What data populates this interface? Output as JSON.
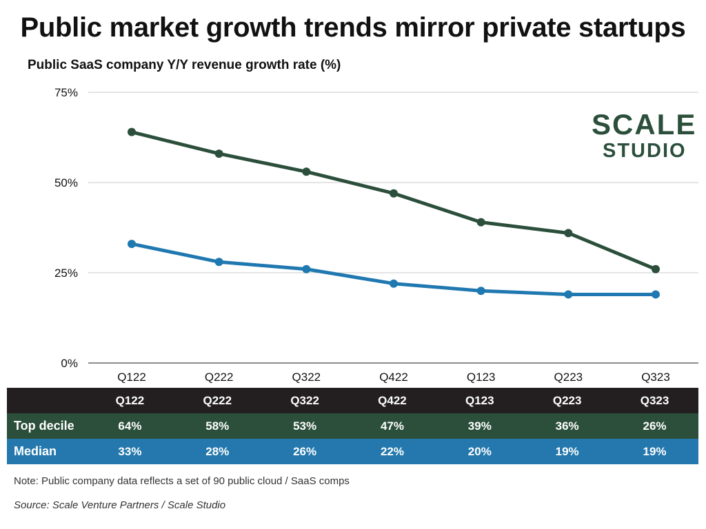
{
  "title": "Public market growth trends mirror private startups",
  "subtitle": "Public SaaS company Y/Y revenue growth rate (%)",
  "logo": {
    "line1": "SCALE",
    "line2": "STUDIO"
  },
  "chart_data": {
    "type": "line",
    "title": "Public market growth trends mirror private startups",
    "ylabel": "Public SaaS company Y/Y revenue growth rate (%)",
    "xlabel": "",
    "categories": [
      "Q122",
      "Q222",
      "Q322",
      "Q422",
      "Q123",
      "Q223",
      "Q323"
    ],
    "series": [
      {
        "name": "Top decile",
        "values": [
          64,
          58,
          53,
          47,
          39,
          36,
          26
        ],
        "color": "#2b4f3b"
      },
      {
        "name": "Median",
        "values": [
          33,
          28,
          26,
          22,
          20,
          19,
          19
        ],
        "color": "#1f78b0"
      }
    ],
    "ylim": [
      0,
      75
    ],
    "yticks": [
      0,
      25,
      50,
      75
    ],
    "ytick_labels": [
      "0%",
      "25%",
      "50%",
      "75%"
    ],
    "grid": true,
    "legend": "none"
  },
  "table": {
    "header_label": "",
    "columns": [
      "Q122",
      "Q222",
      "Q322",
      "Q422",
      "Q123",
      "Q223",
      "Q323"
    ],
    "rows": [
      {
        "label": "Top decile",
        "values": [
          "64%",
          "58%",
          "53%",
          "47%",
          "39%",
          "36%",
          "26%"
        ]
      },
      {
        "label": "Median",
        "values": [
          "33%",
          "28%",
          "26%",
          "22%",
          "20%",
          "19%",
          "19%"
        ]
      }
    ]
  },
  "note": "Note: Public company data reflects a set of 90 public cloud / SaaS comps",
  "source": "Source: Scale Venture Partners / Scale Studio",
  "colors": {
    "top_decile": "#2b4f3b",
    "median": "#1f78b0",
    "table_header": "#231f20",
    "median_row": "#2478ad"
  }
}
